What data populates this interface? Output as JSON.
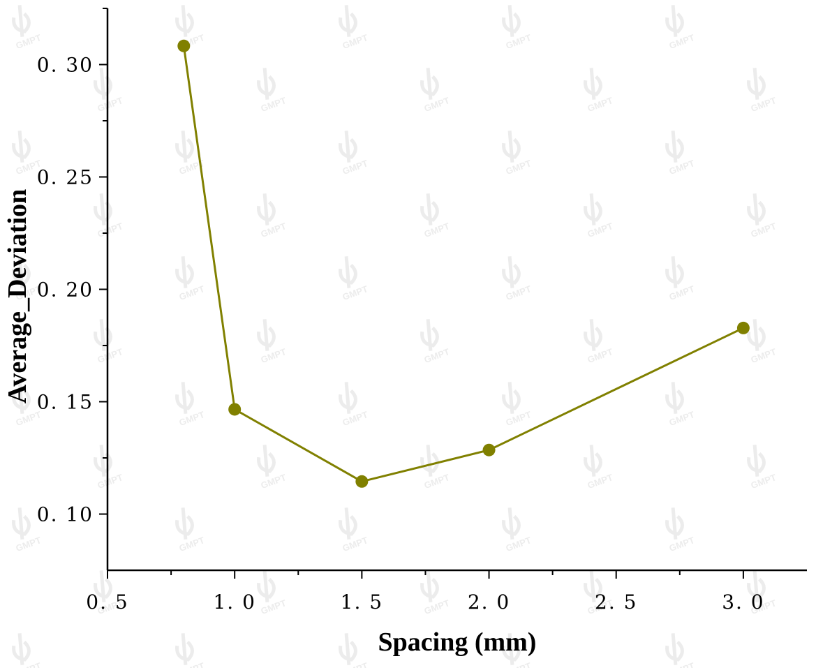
{
  "watermark": {
    "text": "GMPT",
    "color": "#dcdcdc"
  },
  "chart_data": {
    "type": "line",
    "title": "",
    "xlabel": "Spacing (mm)",
    "ylabel": "Average_Deviation",
    "xlim": [
      0.5,
      3.25
    ],
    "ylim": [
      0.075,
      0.325
    ],
    "x_ticks": [
      0.5,
      1.0,
      1.5,
      2.0,
      2.5,
      3.0
    ],
    "x_tick_labels": [
      "0. 5",
      "1. 0",
      "1. 5",
      "2. 0",
      "2. 5",
      "3. 0"
    ],
    "x_minor_ticks": [
      0.75,
      1.25,
      1.75,
      2.25,
      2.75
    ],
    "y_ticks": [
      0.1,
      0.15,
      0.2,
      0.25,
      0.3
    ],
    "y_tick_labels": [
      "0. 10",
      "0. 15",
      "0. 20",
      "0. 25",
      "0. 30"
    ],
    "y_minor_ticks": [
      0.125,
      0.175,
      0.225,
      0.275,
      0.325
    ],
    "grid": false,
    "legend": "none",
    "line_color": "#808000",
    "series": [
      {
        "x": [
          0.8,
          1.0,
          1.5,
          2.0,
          3.0
        ],
        "values": [
          0.3083,
          0.1466,
          0.1145,
          0.1285,
          0.1828
        ]
      }
    ]
  }
}
